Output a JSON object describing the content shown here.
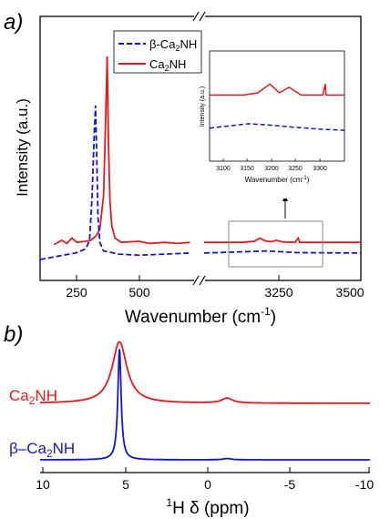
{
  "colors": {
    "ca2nh": "#e8191c",
    "beta": "#1414d6",
    "axis": "#000000",
    "inset_box": "#888888"
  },
  "panel_a": {
    "panel_label": "a)",
    "xlabel": "Wavenumber (cm",
    "xlabel_sup": "-1",
    "xlabel_close": ")",
    "ylabel": "Intensity (a.u.)",
    "legend": [
      {
        "pre": "β-Ca",
        "sub": "2",
        "post": "NH",
        "style": "dashed"
      },
      {
        "pre": "Ca",
        "sub": "2",
        "post": "NH",
        "style": "solid"
      }
    ],
    "ticks_left": [
      "250",
      "500"
    ],
    "ticks_right": [
      "3250",
      "3500"
    ]
  },
  "inset": {
    "ylabel": "Intensity (a.u.)",
    "xlabel": "Wavenumber (cm",
    "xlabel_sup": "-1",
    "xlabel_close": ")",
    "ticks": [
      "3100",
      "3150",
      "3200",
      "3250",
      "3300"
    ]
  },
  "panel_b": {
    "panel_label": "b)",
    "xlabel_sup": "1",
    "xlabel": "H δ (ppm)",
    "ticks": [
      "10",
      "5",
      "0",
      "-5",
      "-10"
    ],
    "labels": [
      {
        "pre": "Ca",
        "sub": "2",
        "post": "NH"
      },
      {
        "pre": "β–Ca",
        "sub": "2",
        "post": "NH"
      }
    ]
  },
  "chart_data": [
    {
      "type": "line",
      "xlabel": "Wavenumber (cm-1)",
      "ylabel": "Intensity (a.u.)",
      "x_axis_break": true,
      "xlim_left": [
        110,
        720
      ],
      "xlim_right": [
        3000,
        3500
      ],
      "legend_position": "top-center",
      "series": [
        {
          "name": "Ca2NH",
          "style": "solid",
          "points": [
            [
              165,
              0.07
            ],
            [
              195,
              0.09
            ],
            [
              215,
              0.075
            ],
            [
              235,
              0.1
            ],
            [
              255,
              0.08
            ],
            [
              290,
              0.085
            ],
            [
              310,
              0.09
            ],
            [
              330,
              0.11
            ],
            [
              345,
              0.14
            ],
            [
              360,
              0.3
            ],
            [
              368,
              0.65
            ],
            [
              374,
              0.95
            ],
            [
              379,
              0.55
            ],
            [
              385,
              0.28
            ],
            [
              392,
              0.16
            ],
            [
              405,
              0.1
            ],
            [
              430,
              0.08
            ],
            [
              500,
              0.085
            ],
            [
              540,
              0.075
            ],
            [
              600,
              0.08
            ],
            [
              650,
              0.075
            ],
            [
              700,
              0.08
            ],
            [
              3000,
              0.08
            ],
            [
              3120,
              0.08
            ],
            [
              3160,
              0.085
            ],
            [
              3178,
              0.1
            ],
            [
              3195,
              0.087
            ],
            [
              3215,
              0.083
            ],
            [
              3230,
              0.09
            ],
            [
              3250,
              0.082
            ],
            [
              3290,
              0.08
            ],
            [
              3300,
              0.1
            ],
            [
              3305,
              0.08
            ],
            [
              3500,
              0.08
            ]
          ]
        },
        {
          "name": "β-Ca2NH",
          "style": "dashed",
          "points": [
            [
              110,
              0.0
            ],
            [
              200,
              0.02
            ],
            [
              250,
              0.03
            ],
            [
              290,
              0.05
            ],
            [
              305,
              0.09
            ],
            [
              315,
              0.3
            ],
            [
              322,
              0.55
            ],
            [
              328,
              0.72
            ],
            [
              333,
              0.5
            ],
            [
              338,
              0.2
            ],
            [
              345,
              0.08
            ],
            [
              360,
              0.04
            ],
            [
              420,
              0.025
            ],
            [
              500,
              0.02
            ],
            [
              600,
              0.025
            ],
            [
              700,
              0.03
            ],
            [
              3000,
              0.03
            ],
            [
              3100,
              0.035
            ],
            [
              3200,
              0.04
            ],
            [
              3300,
              0.032
            ],
            [
              3500,
              0.03
            ]
          ]
        }
      ]
    },
    {
      "type": "line",
      "inset": true,
      "xlabel": "Wavenumber (cm-1)",
      "ylabel": "Intensity (a.u.)",
      "xlim": [
        3060,
        3340
      ],
      "series": [
        {
          "name": "Ca2NH",
          "style": "solid",
          "points": [
            [
              3060,
              0.6
            ],
            [
              3130,
              0.6
            ],
            [
              3160,
              0.62
            ],
            [
              3185,
              0.7
            ],
            [
              3205,
              0.62
            ],
            [
              3225,
              0.67
            ],
            [
              3250,
              0.6
            ],
            [
              3295,
              0.6
            ],
            [
              3300,
              0.7
            ],
            [
              3302,
              0.6
            ],
            [
              3340,
              0.6
            ]
          ]
        },
        {
          "name": "β-Ca2NH",
          "style": "dashed",
          "points": [
            [
              3060,
              0.3
            ],
            [
              3100,
              0.32
            ],
            [
              3140,
              0.34
            ],
            [
              3180,
              0.33
            ],
            [
              3230,
              0.31
            ],
            [
              3290,
              0.29
            ],
            [
              3340,
              0.28
            ]
          ]
        }
      ]
    },
    {
      "type": "line",
      "xlabel": "1H δ (ppm)",
      "xlim": [
        10,
        -10
      ],
      "x_inverted": true,
      "series": [
        {
          "name": "Ca2NH",
          "peaks": [
            {
              "center": 5.3,
              "height": 0.5,
              "width": 0.55
            },
            {
              "center": -1.3,
              "height": 0.04,
              "width": 0.4
            }
          ]
        },
        {
          "name": "β–Ca2NH",
          "peaks": [
            {
              "center": 5.3,
              "height": 0.9,
              "width": 0.12
            },
            {
              "center": -1.3,
              "height": 0.01,
              "width": 0.3
            }
          ]
        }
      ]
    }
  ]
}
